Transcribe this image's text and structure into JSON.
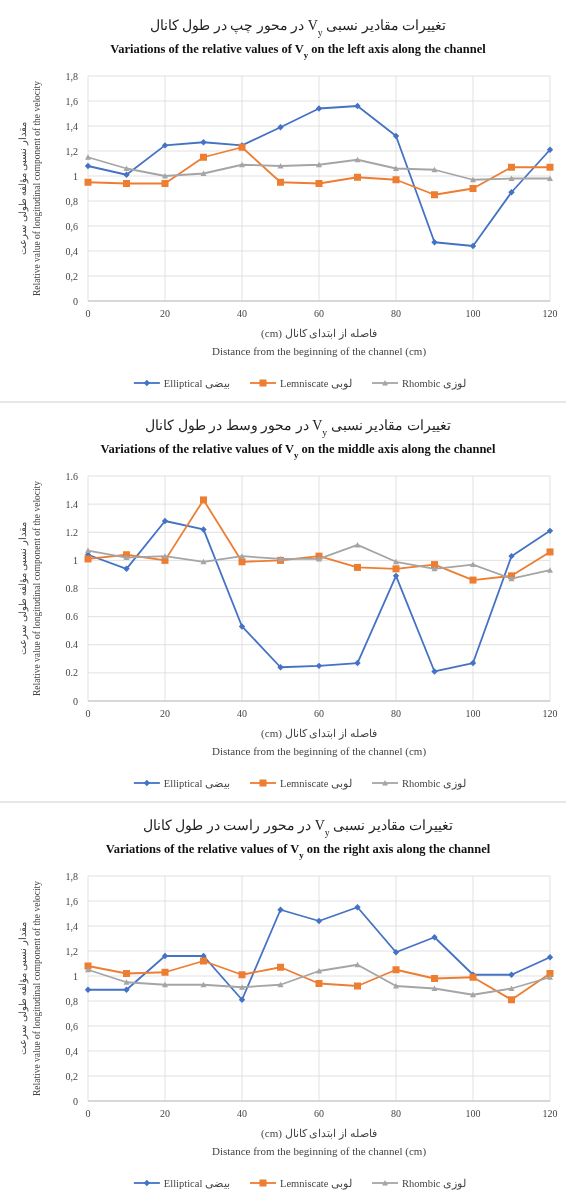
{
  "chart_data": [
    {
      "type": "line",
      "title": "تغییرات مقادیر نسبی V$_{y}$ در محور چپ در طول کانال",
      "subtitle": "Variations of the relative values of V$_{y}$ on the left axis along the channel",
      "xlabel": "فاصله از ابتدای کانال (cm)\nDistance from the beginning of the channel (cm)",
      "ylabel": "مقدار نسبی مؤلفه طولی سرعت\nRelative value of longitudinal component of the velocity",
      "x": [
        0,
        10,
        20,
        30,
        40,
        50,
        60,
        70,
        80,
        90,
        100,
        110,
        120
      ],
      "xlim": [
        0,
        120
      ],
      "xticks": [
        0,
        20,
        40,
        60,
        80,
        100,
        120
      ],
      "ylim": [
        0,
        1.8
      ],
      "yticks": [
        0,
        {
          "value": 0.2,
          "label": "0,2"
        },
        {
          "value": 0.4,
          "label": "0,4"
        },
        {
          "value": 0.6,
          "label": "0,6"
        },
        {
          "value": 0.8,
          "label": "0,8"
        },
        1,
        {
          "value": 1.2,
          "label": "1,2"
        },
        {
          "value": 1.4,
          "label": "1,4"
        },
        {
          "value": 1.6,
          "label": "1,6"
        },
        {
          "value": 1.8,
          "label": "1,8"
        }
      ],
      "grid": true,
      "legend": "bottom",
      "series": [
        {
          "name": "Elliptical بیضی",
          "color": "#4472c4",
          "marker": "diamond",
          "values": [
            1.08,
            1.01,
            1.245,
            1.27,
            1.245,
            1.39,
            1.54,
            1.56,
            1.32,
            0.47,
            0.44,
            0.87,
            1.21
          ]
        },
        {
          "name": "Lemniscate لوبی",
          "color": "#ed7d31",
          "marker": "square",
          "values": [
            0.95,
            0.94,
            0.94,
            1.15,
            1.23,
            0.95,
            0.94,
            0.99,
            0.97,
            0.85,
            0.9,
            1.07,
            1.07
          ]
        },
        {
          "name": "Rhombic لوزی",
          "color": "#a5a5a5",
          "marker": "triangle",
          "values": [
            1.15,
            1.06,
            1.0,
            1.02,
            1.09,
            1.08,
            1.09,
            1.13,
            1.06,
            1.05,
            0.97,
            0.98,
            0.98
          ]
        }
      ]
    },
    {
      "type": "line",
      "title": "تغییرات مقادیر نسبی V$_{y}$ در محور وسط در طول کانال",
      "subtitle": "Variations of the relative values of V$_{y}$ on the middle axis along the channel",
      "xlabel": "فاصله از ابتدای کانال (cm)\nDistance from the beginning of the channel (cm)",
      "ylabel": "مقدار نسبی مؤلفه طولی سرعت\nRelative value of longitudinal component of the velocity",
      "x": [
        0,
        10,
        20,
        30,
        40,
        50,
        60,
        70,
        80,
        90,
        100,
        110,
        120
      ],
      "xlim": [
        0,
        120
      ],
      "xticks": [
        0,
        20,
        40,
        60,
        80,
        100,
        120
      ],
      "ylim": [
        0,
        1.6
      ],
      "yticks": [
        0,
        0.2,
        0.4,
        0.6,
        0.8,
        1,
        1.2,
        1.4,
        1.6
      ],
      "grid": true,
      "legend": "bottom",
      "series": [
        {
          "name": "Elliptical بیضی",
          "color": "#4472c4",
          "marker": "diamond",
          "values": [
            1.04,
            0.94,
            1.28,
            1.22,
            0.53,
            0.24,
            0.25,
            0.27,
            0.89,
            0.21,
            0.27,
            1.03,
            1.21
          ]
        },
        {
          "name": "Lemniscate لوبی",
          "color": "#ed7d31",
          "marker": "square",
          "values": [
            1.01,
            1.04,
            1.0,
            1.43,
            0.99,
            1.0,
            1.03,
            0.95,
            0.94,
            0.97,
            0.86,
            0.89,
            1.06
          ]
        },
        {
          "name": "Rhombic لوزی",
          "color": "#a5a5a5",
          "marker": "triangle",
          "values": [
            1.07,
            1.02,
            1.03,
            0.99,
            1.03,
            1.01,
            1.01,
            1.11,
            0.99,
            0.94,
            0.97,
            0.87,
            0.93
          ]
        }
      ]
    },
    {
      "type": "line",
      "title": "تغییرات مقادیر نسبی V$_{y}$ در محور راست در طول کانال",
      "subtitle": "Variations of the relative values of V$_{y}$ on the right axis along the channel",
      "xlabel": "فاصله از ابتدای کانال (cm)\nDistance from the beginning of the channel (cm)",
      "ylabel": "مقدار نسبی مؤلفه طولی سرعت\nRelative value of longitudinal component of the velocity",
      "x": [
        0,
        10,
        20,
        30,
        40,
        50,
        60,
        70,
        80,
        90,
        100,
        110,
        120
      ],
      "xlim": [
        0,
        120
      ],
      "xticks": [
        0,
        20,
        40,
        60,
        80,
        100,
        120
      ],
      "ylim": [
        0,
        1.8
      ],
      "yticks": [
        0,
        {
          "value": 0.2,
          "label": "0,2"
        },
        {
          "value": 0.4,
          "label": "0,4"
        },
        {
          "value": 0.6,
          "label": "0,6"
        },
        {
          "value": 0.8,
          "label": "0,8"
        },
        1,
        {
          "value": 1.2,
          "label": "1,2"
        },
        {
          "value": 1.4,
          "label": "1,4"
        },
        {
          "value": 1.6,
          "label": "1,6"
        },
        {
          "value": 1.8,
          "label": "1,8"
        }
      ],
      "grid": true,
      "legend": "bottom",
      "series": [
        {
          "name": "Elliptical بیضی",
          "color": "#4472c4",
          "marker": "diamond",
          "values": [
            0.89,
            0.89,
            1.16,
            1.16,
            0.81,
            1.53,
            1.44,
            1.55,
            1.19,
            1.31,
            1.01,
            1.01,
            1.15
          ]
        },
        {
          "name": "Lemniscate لوبی",
          "color": "#ed7d31",
          "marker": "square",
          "values": [
            1.08,
            1.02,
            1.03,
            1.12,
            1.01,
            1.07,
            0.94,
            0.92,
            1.05,
            0.98,
            0.99,
            0.81,
            1.02
          ]
        },
        {
          "name": "Rhombic لوزی",
          "color": "#a5a5a5",
          "marker": "triangle",
          "values": [
            1.05,
            0.95,
            0.93,
            0.93,
            0.91,
            0.93,
            1.04,
            1.09,
            0.92,
            0.9,
            0.85,
            0.9,
            0.99
          ]
        }
      ]
    }
  ]
}
